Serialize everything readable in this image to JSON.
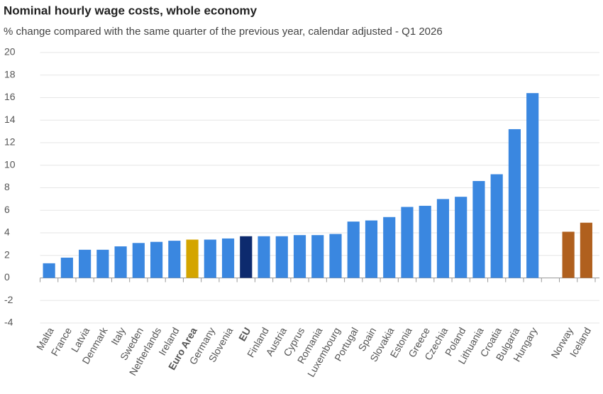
{
  "chart_data": {
    "type": "bar",
    "title": "Nominal hourly wage costs, whole economy",
    "subtitle": "% change compared with the same quarter of the previous year, calendar adjusted - Q1 2026",
    "categories": [
      "Malta",
      "France",
      "Latvia",
      "Denmark",
      "Italy",
      "Sweden",
      "Netherlands",
      "Ireland",
      "Euro Area",
      "Germany",
      "Slovenia",
      "EU",
      "Finland",
      "Austria",
      "Cyprus",
      "Romania",
      "Luxembourg",
      "Portugal",
      "Spain",
      "Slovakia",
      "Estonia",
      "Greece",
      "Czechia",
      "Poland",
      "Lithuania",
      "Croatia",
      "Bulgaria",
      "Hungary",
      null,
      "Norway",
      "Iceland"
    ],
    "values": [
      1.3,
      1.8,
      2.5,
      2.5,
      2.8,
      3.1,
      3.2,
      3.3,
      3.4,
      3.4,
      3.5,
      3.7,
      3.7,
      3.7,
      3.8,
      3.8,
      3.9,
      5.0,
      5.1,
      5.4,
      6.3,
      6.4,
      7.0,
      7.2,
      8.6,
      9.2,
      13.2,
      16.4,
      null,
      4.1,
      4.9
    ],
    "colors": [
      "#3a87e0",
      "#3a87e0",
      "#3a87e0",
      "#3a87e0",
      "#3a87e0",
      "#3a87e0",
      "#3a87e0",
      "#3a87e0",
      "#d4a500",
      "#3a87e0",
      "#3a87e0",
      "#0d2a6e",
      "#3a87e0",
      "#3a87e0",
      "#3a87e0",
      "#3a87e0",
      "#3a87e0",
      "#3a87e0",
      "#3a87e0",
      "#3a87e0",
      "#3a87e0",
      "#3a87e0",
      "#3a87e0",
      "#3a87e0",
      "#3a87e0",
      "#3a87e0",
      "#3a87e0",
      "#3a87e0",
      null,
      "#b0601e",
      "#b0601e"
    ],
    "bold_indices": [
      8,
      11
    ],
    "ylim": [
      -4,
      20
    ],
    "yticks": [
      -4,
      -2,
      0,
      2,
      4,
      6,
      8,
      10,
      12,
      14,
      16,
      18,
      20
    ],
    "grid": true
  }
}
